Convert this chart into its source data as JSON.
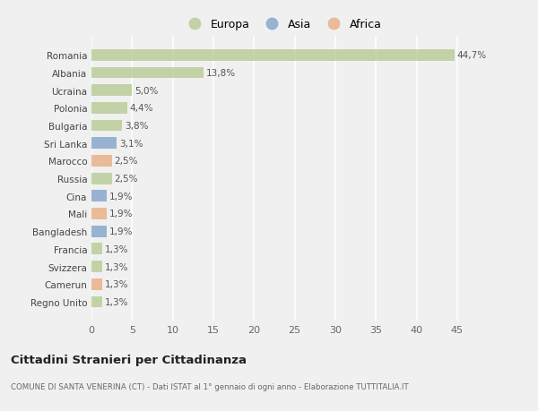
{
  "categories": [
    "Regno Unito",
    "Camerun",
    "Svizzera",
    "Francia",
    "Bangladesh",
    "Mali",
    "Cina",
    "Russia",
    "Marocco",
    "Sri Lanka",
    "Bulgaria",
    "Polonia",
    "Ucraina",
    "Albania",
    "Romania"
  ],
  "values": [
    1.3,
    1.3,
    1.3,
    1.3,
    1.9,
    1.9,
    1.9,
    2.5,
    2.5,
    3.1,
    3.8,
    4.4,
    5.0,
    13.8,
    44.7
  ],
  "labels": [
    "1,3%",
    "1,3%",
    "1,3%",
    "1,3%",
    "1,9%",
    "1,9%",
    "1,9%",
    "2,5%",
    "2,5%",
    "3,1%",
    "3,8%",
    "4,4%",
    "5,0%",
    "13,8%",
    "44,7%"
  ],
  "colors": [
    "#b5c98e",
    "#e8a87c",
    "#b5c98e",
    "#b5c98e",
    "#7b9ec7",
    "#e8a87c",
    "#7b9ec7",
    "#b5c98e",
    "#e8a87c",
    "#7b9ec7",
    "#b5c98e",
    "#b5c98e",
    "#b5c98e",
    "#b5c98e",
    "#b5c98e"
  ],
  "legend": [
    {
      "label": "Europa",
      "color": "#b5c98e"
    },
    {
      "label": "Asia",
      "color": "#7b9ec7"
    },
    {
      "label": "Africa",
      "color": "#e8a87c"
    }
  ],
  "xlim": [
    0,
    47
  ],
  "xticks": [
    0,
    5,
    10,
    15,
    20,
    25,
    30,
    35,
    40,
    45
  ],
  "title": "Cittadini Stranieri per Cittadinanza",
  "subtitle": "COMUNE DI SANTA VENERINA (CT) - Dati ISTAT al 1° gennaio di ogni anno - Elaborazione TUTTITALIA.IT",
  "bg_color": "#f0f0f0",
  "bar_alpha": 0.75,
  "label_fontsize": 7.5,
  "ytick_fontsize": 7.5,
  "xtick_fontsize": 8
}
